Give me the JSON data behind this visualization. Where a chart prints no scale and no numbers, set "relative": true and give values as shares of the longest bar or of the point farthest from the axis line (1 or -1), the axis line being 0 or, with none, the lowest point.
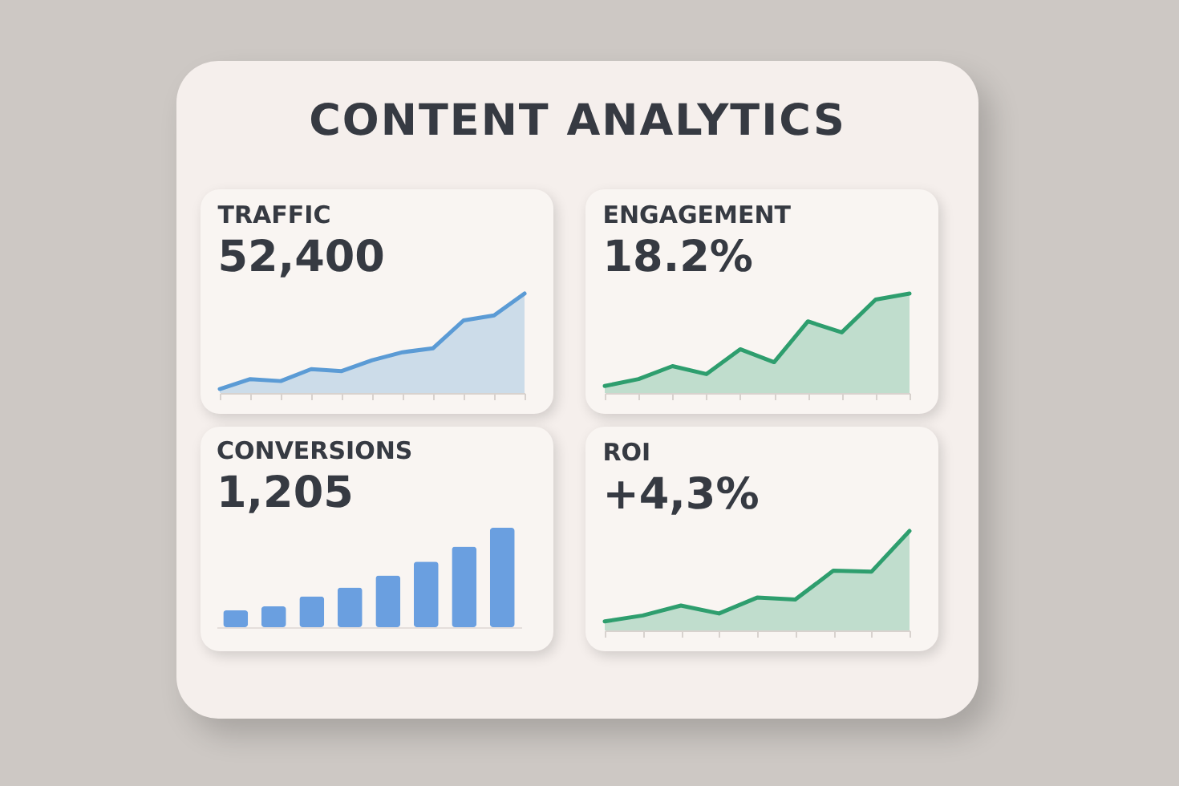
{
  "chart_data": [
    {
      "type": "other",
      "title": "CONTENT ANALYTICS"
    },
    {
      "type": "area",
      "title": "TRAFFIC",
      "subtitle": "52,400",
      "relative": true,
      "categories": [
        null,
        null,
        null,
        null,
        null,
        null,
        null,
        null,
        null,
        null,
        null
      ],
      "series": [
        {
          "color": "#5b9bd5",
          "values": [
            0.04,
            0.14,
            0.12,
            0.24,
            0.22,
            0.33,
            0.41,
            0.45,
            0.73,
            0.78,
            1
          ]
        }
      ]
    },
    {
      "type": "area",
      "title": "ENGAGEMENT",
      "subtitle": "18.2%",
      "relative": true,
      "categories": [
        null,
        null,
        null,
        null,
        null,
        null,
        null,
        null,
        null,
        null
      ],
      "series": [
        {
          "color": "#2e9e6e",
          "values": [
            0.07,
            0.14,
            0.27,
            0.19,
            0.44,
            0.31,
            0.72,
            0.61,
            0.94,
            1
          ]
        }
      ]
    },
    {
      "type": "bar",
      "title": "CONVERSIONS",
      "subtitle": "1,205",
      "relative": true,
      "categories": [
        null,
        null,
        null,
        null,
        null,
        null,
        null,
        null
      ],
      "series": [
        {
          "color": "#6a9fe0",
          "values": [
            0.17,
            0.21,
            0.31,
            0.4,
            0.52,
            0.66,
            0.81,
            1
          ]
        }
      ]
    },
    {
      "type": "area",
      "title": "ROI",
      "subtitle": "+4,3%",
      "relative": true,
      "categories": [
        null,
        null,
        null,
        null,
        null,
        null,
        null,
        null,
        null
      ],
      "series": [
        {
          "color": "#2e9e6e",
          "values": [
            0.09,
            0.15,
            0.25,
            0.17,
            0.33,
            0.31,
            0.6,
            0.59,
            1
          ]
        }
      ]
    }
  ]
}
